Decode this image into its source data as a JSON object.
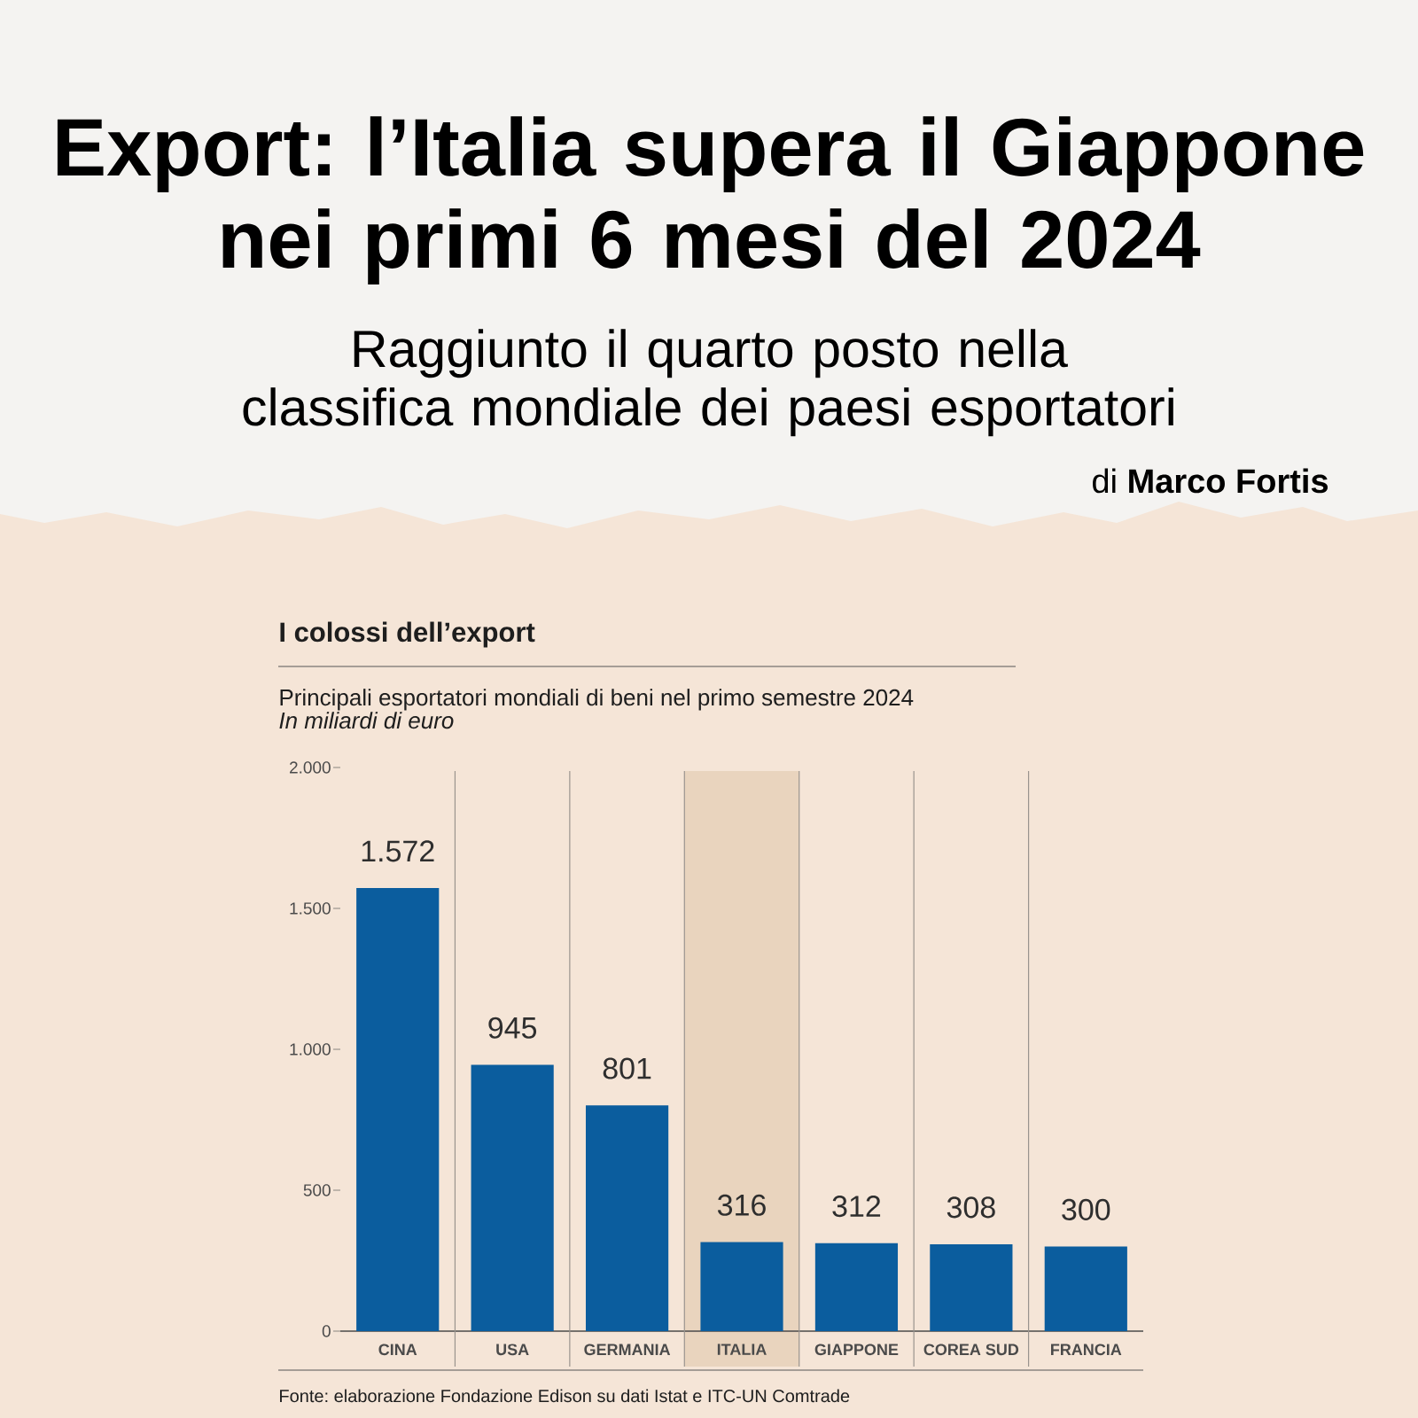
{
  "chart_data": {
    "type": "bar",
    "title": "Export: l’Italia supera il Giappone nei primi 6 mesi del 2024",
    "subtitle": "Raggiunto il quarto posto nella classifica mondiale dei paesi esportatori",
    "ylabel": "In miliardi di euro",
    "annotations": [
      "di **Marco Fortis**",
      "I colossi dell’export",
      "Principali esportatori mondiali di beni nel primo semestre 2024",
      "Fonte: elaborazione Fondazione Edison su dati Istat e ITC-UN Comtrade"
    ],
    "categories": [
      "CINA",
      "USA",
      "GERMANIA",
      "ITALIA",
      "GIAPPONE",
      "COREA SUD",
      "FRANCIA"
    ],
    "values": [
      1572,
      945,
      801,
      316,
      312,
      308,
      300
    ],
    "value_labels": [
      "1.572",
      "945",
      "801",
      "316",
      "312",
      "308",
      "300"
    ],
    "color": "#0b5d9e",
    "ylim": [
      0,
      2000
    ],
    "yticks": [
      0,
      500,
      {
        "value": 1000,
        "label": "1.000"
      },
      {
        "value": 1500,
        "label": "1.500"
      },
      {
        "value": 2000,
        "label": "2.000"
      }
    ],
    "bands": [
      {
        "axis": "x",
        "from": "ITALIA",
        "to": "ITALIA",
        "color": "#e9d4be"
      }
    ],
    "grid": "x"
  }
}
